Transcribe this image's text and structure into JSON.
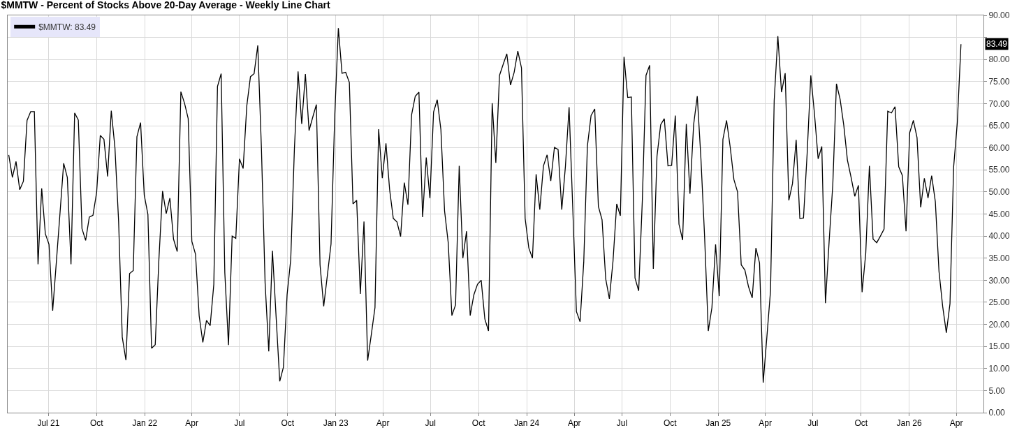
{
  "chart_data": {
    "type": "line",
    "title": "$MMTW - Percent of Stocks Above 20-Day Average - Weekly Line Chart",
    "x": [
      "2021-04-16",
      "2021-04-23",
      "2021-04-30",
      "2021-05-07",
      "2021-05-14",
      "2021-05-21",
      "2021-05-28",
      "2021-06-04",
      "2021-06-11",
      "2021-06-18",
      "2021-06-25",
      "2021-07-02",
      "2021-07-09",
      "2021-07-16",
      "2021-07-23",
      "2021-07-30",
      "2021-08-06",
      "2021-08-13",
      "2021-08-20",
      "2021-08-27",
      "2021-09-03",
      "2021-09-10",
      "2021-09-17",
      "2021-09-24",
      "2021-10-01",
      "2021-10-08",
      "2021-10-15",
      "2021-10-22",
      "2021-10-29",
      "2021-11-05",
      "2021-11-12",
      "2021-11-19",
      "2021-11-26",
      "2021-12-03",
      "2021-12-10",
      "2021-12-17",
      "2021-12-24",
      "2021-12-31",
      "2022-01-07",
      "2022-01-14",
      "2022-01-21",
      "2022-01-28",
      "2022-02-04",
      "2022-02-11",
      "2022-02-18",
      "2022-02-25",
      "2022-03-04",
      "2022-03-11",
      "2022-03-18",
      "2022-03-25",
      "2022-04-01",
      "2022-04-08",
      "2022-04-15",
      "2022-04-22",
      "2022-04-29",
      "2022-05-06",
      "2022-05-13",
      "2022-05-20",
      "2022-05-27",
      "2022-06-03",
      "2022-06-10",
      "2022-06-17",
      "2022-06-24",
      "2022-07-01",
      "2022-07-08",
      "2022-07-15",
      "2022-07-22",
      "2022-07-29",
      "2022-08-05",
      "2022-08-12",
      "2022-08-19",
      "2022-08-26",
      "2022-09-02",
      "2022-09-09",
      "2022-09-16",
      "2022-09-23",
      "2022-09-30",
      "2022-10-07",
      "2022-10-14",
      "2022-10-21",
      "2022-10-28",
      "2022-11-04",
      "2022-11-11",
      "2022-11-18",
      "2022-11-25",
      "2022-12-02",
      "2022-12-09",
      "2022-12-16",
      "2022-12-23",
      "2022-12-30",
      "2023-01-06",
      "2023-01-13",
      "2023-01-20",
      "2023-01-27",
      "2023-02-03",
      "2023-02-10",
      "2023-02-17",
      "2023-02-24",
      "2023-03-03",
      "2023-03-10",
      "2023-03-17",
      "2023-03-24",
      "2023-03-31",
      "2023-04-07",
      "2023-04-14",
      "2023-04-21",
      "2023-04-28",
      "2023-05-05",
      "2023-05-12",
      "2023-05-19",
      "2023-05-26",
      "2023-06-02",
      "2023-06-09",
      "2023-06-16",
      "2023-06-23",
      "2023-06-30",
      "2023-07-07",
      "2023-07-14",
      "2023-07-21",
      "2023-07-28",
      "2023-08-04",
      "2023-08-11",
      "2023-08-18",
      "2023-08-25",
      "2023-09-01",
      "2023-09-08",
      "2023-09-15",
      "2023-09-22",
      "2023-09-29",
      "2023-10-06",
      "2023-10-13",
      "2023-10-20",
      "2023-10-27",
      "2023-11-03",
      "2023-11-10",
      "2023-11-17",
      "2023-11-24",
      "2023-12-01",
      "2023-12-08",
      "2023-12-15",
      "2023-12-22",
      "2023-12-29",
      "2024-01-05",
      "2024-01-12",
      "2024-01-19",
      "2024-01-26",
      "2024-02-02",
      "2024-02-09",
      "2024-02-16",
      "2024-02-23",
      "2024-03-01",
      "2024-03-08",
      "2024-03-15",
      "2024-03-22",
      "2024-03-29",
      "2024-04-05",
      "2024-04-12",
      "2024-04-19",
      "2024-04-26",
      "2024-05-03",
      "2024-05-10",
      "2024-05-17",
      "2024-05-24",
      "2024-05-31",
      "2024-06-07",
      "2024-06-14",
      "2024-06-21",
      "2024-06-28",
      "2024-07-05",
      "2024-07-12",
      "2024-07-19",
      "2024-07-26",
      "2024-08-02",
      "2024-08-09",
      "2024-08-16",
      "2024-08-23",
      "2024-08-30",
      "2024-09-06",
      "2024-09-13",
      "2024-09-20",
      "2024-09-27",
      "2024-10-04",
      "2024-10-11",
      "2024-10-18",
      "2024-10-25",
      "2024-11-01",
      "2024-11-08",
      "2024-11-15",
      "2024-11-22",
      "2024-11-29",
      "2024-12-06",
      "2024-12-13",
      "2024-12-20",
      "2024-12-27",
      "2025-01-03",
      "2025-01-10",
      "2025-01-17",
      "2025-01-24",
      "2025-01-31",
      "2025-02-07",
      "2025-02-14",
      "2025-02-21",
      "2025-02-28",
      "2025-03-07",
      "2025-03-14",
      "2025-03-21",
      "2025-03-28",
      "2025-04-04",
      "2025-04-11",
      "2025-04-18",
      "2025-04-25",
      "2025-05-02",
      "2025-05-09",
      "2025-05-16",
      "2025-05-23",
      "2025-05-30",
      "2025-06-06",
      "2025-06-13",
      "2025-06-20",
      "2025-06-27",
      "2025-07-04",
      "2025-07-11",
      "2025-07-18",
      "2025-07-25",
      "2025-08-01",
      "2025-08-08",
      "2025-08-15",
      "2025-08-22",
      "2025-08-29",
      "2025-09-05",
      "2025-09-12",
      "2025-09-19",
      "2025-09-26",
      "2025-10-03",
      "2025-10-10",
      "2025-10-17",
      "2025-10-24",
      "2025-10-31",
      "2025-11-07",
      "2025-11-14",
      "2025-11-21",
      "2025-11-28",
      "2025-12-05",
      "2025-12-12",
      "2025-12-19",
      "2025-12-26",
      "2026-01-02",
      "2026-01-09",
      "2026-01-16",
      "2026-01-23",
      "2026-01-30",
      "2026-02-06",
      "2026-02-13",
      "2026-02-20",
      "2026-02-27",
      "2026-03-06",
      "2026-03-13",
      "2026-03-20",
      "2026-03-27",
      "2026-04-03",
      "2026-04-10"
    ],
    "series": [
      {
        "name": "$MMTW: 83.49",
        "color": "#000000",
        "values": [
          58.4,
          53.3,
          56.9,
          50.5,
          52.4,
          66.2,
          68.2,
          68.2,
          33.6,
          50.8,
          40.5,
          38.1,
          23.1,
          34.1,
          45.2,
          56.5,
          53.3,
          33.6,
          67.9,
          66.3,
          41.7,
          39.0,
          44.3,
          44.7,
          49.9,
          62.8,
          61.9,
          53.5,
          68.4,
          60.0,
          43.4,
          17.1,
          11.9,
          31.5,
          32.2,
          62.5,
          65.7,
          49.3,
          44.9,
          14.6,
          15.4,
          34.7,
          50.2,
          45.1,
          48.6,
          39.3,
          36.5,
          72.7,
          70.1,
          66.6,
          38.8,
          35.9,
          21.9,
          15.9,
          20.9,
          19.7,
          29.1,
          73.9,
          76.8,
          31.7,
          15.3,
          40.0,
          39.5,
          57.5,
          55.3,
          69.5,
          76.1,
          76.8,
          83.2,
          59.8,
          29.4,
          13.9,
          36.7,
          21.8,
          7.1,
          10.3,
          26.7,
          34.7,
          59.8,
          77.3,
          65.4,
          76.7,
          63.9,
          66.9,
          69.8,
          33.5,
          24.1,
          31.1,
          38.2,
          66.9,
          87.1,
          76.9,
          77.1,
          74.8,
          47.3,
          48.1,
          26.9,
          43.3,
          11.8,
          17.7,
          23.8,
          64.2,
          53.1,
          61.0,
          50.5,
          44.0,
          43.2,
          39.9,
          52.1,
          47.1,
          67.5,
          71.7,
          72.6,
          44.3,
          57.8,
          48.6,
          68.1,
          70.9,
          64.1,
          45.7,
          38.5,
          22.0,
          24.4,
          55.9,
          35.0,
          41.1,
          22.0,
          26.7,
          29.1,
          30.0,
          21.2,
          18.5,
          70.1,
          56.6,
          76.4,
          78.9,
          81.3,
          74.2,
          77.1,
          81.9,
          78.1,
          44.0,
          37.3,
          35.0,
          54.0,
          46.0,
          55.9,
          58.4,
          52.5,
          60.1,
          59.6,
          46.0,
          55.8,
          69.2,
          46.4,
          22.9,
          20.6,
          34.1,
          60.4,
          67.3,
          68.8,
          46.7,
          43.7,
          30.3,
          25.8,
          34.4,
          47.3,
          44.6,
          80.6,
          71.4,
          71.5,
          30.5,
          27.6,
          48.1,
          76.4,
          78.7,
          32.6,
          58.1,
          65.2,
          66.6,
          55.9,
          56.0,
          67.3,
          42.7,
          39.1,
          65.4,
          49.6,
          65.2,
          71.7,
          57.5,
          39.9,
          18.5,
          23.8,
          38.1,
          26.4,
          61.9,
          66.2,
          60.1,
          52.8,
          50.0,
          33.5,
          32.3,
          28.5,
          26.0,
          37.3,
          33.9,
          6.8,
          17.1,
          27.6,
          70.7,
          85.3,
          72.6,
          76.9,
          48.1,
          51.9,
          61.8,
          44.0,
          44.1,
          58.7,
          76.4,
          67.7,
          57.5,
          60.3,
          24.8,
          38.8,
          51.6,
          74.5,
          71.0,
          65.1,
          57.2,
          53.3,
          49.0,
          51.5,
          27.3,
          36.1,
          55.9,
          39.3,
          38.5,
          40.0,
          41.6,
          68.3,
          67.9,
          69.3,
          55.7,
          53.7,
          41.1,
          63.4,
          66.2,
          62.3,
          46.5,
          53.1,
          48.6,
          53.7,
          47.8,
          32.0,
          24.1,
          18.1,
          24.7,
          55.7,
          65.7,
          83.49
        ]
      }
    ],
    "annotations": [
      "83.49"
    ],
    "xlim": [
      "2021-04-14",
      "2026-05-23"
    ],
    "xticks": [
      {
        "value": "2021-07-01",
        "label": "Jul 21"
      },
      {
        "value": "2021-10-01",
        "label": "Oct"
      },
      {
        "value": "2022-01-01",
        "label": "Jan 22"
      },
      {
        "value": "2022-04-01",
        "label": "Apr"
      },
      {
        "value": "2022-07-01",
        "label": "Jul"
      },
      {
        "value": "2022-10-01",
        "label": "Oct"
      },
      {
        "value": "2023-01-01",
        "label": "Jan 23"
      },
      {
        "value": "2023-04-01",
        "label": "Apr"
      },
      {
        "value": "2023-07-01",
        "label": "Jul"
      },
      {
        "value": "2023-10-01",
        "label": "Oct"
      },
      {
        "value": "2024-01-01",
        "label": "Jan 24"
      },
      {
        "value": "2024-04-01",
        "label": "Apr"
      },
      {
        "value": "2024-07-01",
        "label": "Jul"
      },
      {
        "value": "2024-10-01",
        "label": "Oct"
      },
      {
        "value": "2025-01-01",
        "label": "Jan 25"
      },
      {
        "value": "2025-04-01",
        "label": "Apr"
      },
      {
        "value": "2025-07-01",
        "label": "Jul"
      },
      {
        "value": "2025-10-01",
        "label": "Oct"
      },
      {
        "value": "2026-01-01",
        "label": "Jan 26"
      },
      {
        "value": "2026-04-01",
        "label": "Apr"
      }
    ],
    "ylim": [
      0,
      90
    ],
    "yticks": [
      {
        "value": 0,
        "label": "0.00"
      },
      {
        "value": 5,
        "label": "5.00"
      },
      {
        "value": 10,
        "label": "10.00"
      },
      {
        "value": 15,
        "label": "15.00"
      },
      {
        "value": 20,
        "label": "20.00"
      },
      {
        "value": 25,
        "label": "25.00"
      },
      {
        "value": 30,
        "label": "30.00"
      },
      {
        "value": 35,
        "label": "35.00"
      },
      {
        "value": 40,
        "label": "40.00"
      },
      {
        "value": 45,
        "label": "45.00"
      },
      {
        "value": 50,
        "label": "50.00"
      },
      {
        "value": 55,
        "label": "55.00"
      },
      {
        "value": 60,
        "label": "60.00"
      },
      {
        "value": 65,
        "label": "65.00"
      },
      {
        "value": 70,
        "label": "70.00"
      },
      {
        "value": 75,
        "label": "75.00"
      },
      {
        "value": 80,
        "label": "80.00"
      },
      {
        "value": 85,
        "label": null
      },
      {
        "value": 90,
        "label": "90.00"
      }
    ],
    "grid": true,
    "legend": "top left",
    "marker": "none",
    "line_style": "solid"
  }
}
